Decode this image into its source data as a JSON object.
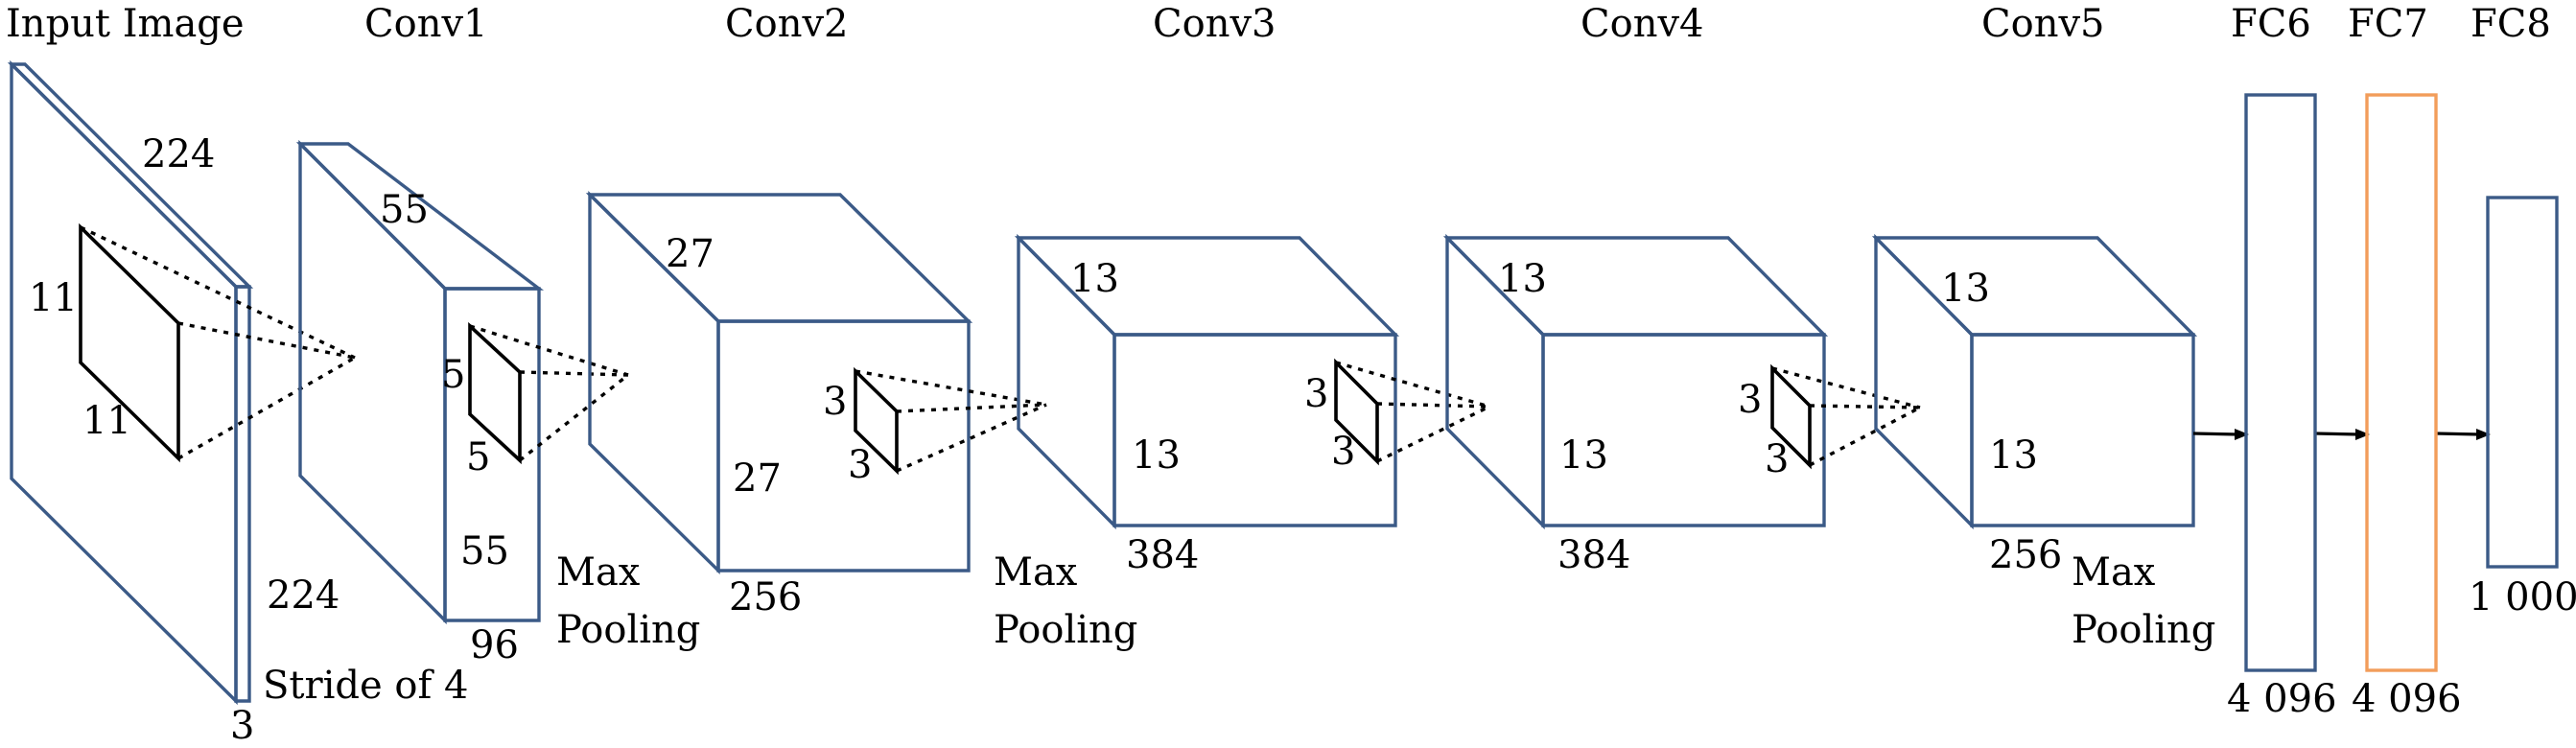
{
  "stages": {
    "input": "Input Image",
    "conv1": "Conv1",
    "conv2": "Conv2",
    "conv3": "Conv3",
    "conv4": "Conv4",
    "conv5": "Conv5",
    "fc6": "FC6",
    "fc7": "FC7",
    "fc8": "FC8"
  },
  "dims": {
    "input_w": "224",
    "input_h": "224",
    "input_d": "3",
    "input_k_h": "11",
    "input_k_w": "11",
    "conv1_w": "55",
    "conv1_h": "55",
    "conv1_d": "96",
    "conv1_k_h": "5",
    "conv1_k_w": "5",
    "conv2_w": "27",
    "conv2_h": "27",
    "conv2_d": "256",
    "conv2_k_h": "3",
    "conv2_k_w": "3",
    "conv3_w": "13",
    "conv3_h": "13",
    "conv3_d": "384",
    "conv3_k_h": "3",
    "conv3_k_w": "3",
    "conv4_w": "13",
    "conv4_h": "13",
    "conv4_d": "384",
    "conv4_k_h": "3",
    "conv4_k_w": "3",
    "conv5_w": "13",
    "conv5_h": "13",
    "conv5_d": "256",
    "fc6_n": "4 096",
    "fc7_n": "4 096",
    "fc8_n": "1 000"
  },
  "ops": {
    "stride": "Stride of 4",
    "maxpool1_a": "Max",
    "maxpool1_b": "Pooling",
    "maxpool2_a": "Max",
    "maxpool2_b": "Pooling",
    "maxpool3_a": "Max",
    "maxpool3_b": "Pooling"
  },
  "colors": {
    "layer_outline": "#3b5a87",
    "fc7_outline": "#f29d5a",
    "kernel": "#000000"
  }
}
